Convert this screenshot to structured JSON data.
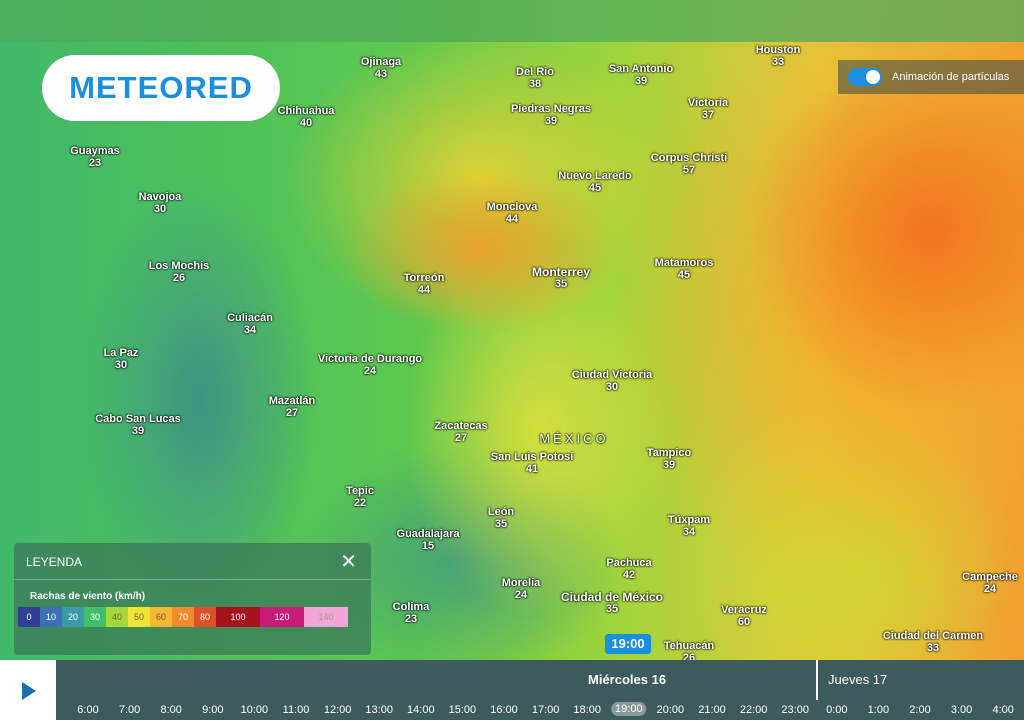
{
  "header": {
    "logo": "METEORED",
    "toggle_label": "Animación de partículas"
  },
  "map": {
    "country": "MÉXICO",
    "cities": [
      {
        "name": "Ojinaga",
        "value": 43
      },
      {
        "name": "Del Rio",
        "value": 38
      },
      {
        "name": "San Antonio",
        "value": 39
      },
      {
        "name": "Houston",
        "value": 33
      },
      {
        "name": "Chihuahua",
        "value": 40
      },
      {
        "name": "Piedras Negras",
        "value": 39
      },
      {
        "name": "Victoria",
        "value": 37
      },
      {
        "name": "Guaymas",
        "value": 23
      },
      {
        "name": "Corpus Christi",
        "value": 57
      },
      {
        "name": "Nuevo Laredo",
        "value": 45
      },
      {
        "name": "Navojoa",
        "value": 30
      },
      {
        "name": "Monclova",
        "value": 44
      },
      {
        "name": "Los Mochis",
        "value": 26
      },
      {
        "name": "Monterrey",
        "value": 35
      },
      {
        "name": "Matamoros",
        "value": 45
      },
      {
        "name": "Torreón",
        "value": 44
      },
      {
        "name": "Culiacán",
        "value": 34
      },
      {
        "name": "La Paz",
        "value": 30
      },
      {
        "name": "Victoria de Durango",
        "value": 24
      },
      {
        "name": "Ciudad Victoria",
        "value": 30
      },
      {
        "name": "Cabo San Lucas",
        "value": 39
      },
      {
        "name": "Mazatlán",
        "value": 27
      },
      {
        "name": "Zacatecas",
        "value": 27
      },
      {
        "name": "Tampico",
        "value": 39
      },
      {
        "name": "San Luis Potosí",
        "value": 41
      },
      {
        "name": "Tepic",
        "value": 22
      },
      {
        "name": "León",
        "value": 35
      },
      {
        "name": "Túxpam",
        "value": 34
      },
      {
        "name": "Guadalajara",
        "value": 15
      },
      {
        "name": "Pachuca",
        "value": 42
      },
      {
        "name": "Campeche",
        "value": 24
      },
      {
        "name": "Morelia",
        "value": 24
      },
      {
        "name": "Ciudad de México",
        "value": 35
      },
      {
        "name": "Colima",
        "value": 23
      },
      {
        "name": "Veracruz",
        "value": 60
      },
      {
        "name": "Ciudad del Carmen",
        "value": 33
      },
      {
        "name": "Tehuacán",
        "value": 26
      }
    ]
  },
  "legend": {
    "title": "LEYENDA",
    "subtitle": "Rachas de viento (km/h)",
    "steps": [
      {
        "value": 0,
        "color": "#2f3f94"
      },
      {
        "value": 10,
        "color": "#3f6fb4"
      },
      {
        "value": 20,
        "color": "#3a9aa6"
      },
      {
        "value": 30,
        "color": "#3fbf6a"
      },
      {
        "value": 40,
        "color": "#a6d83a"
      },
      {
        "value": 50,
        "color": "#f2e234"
      },
      {
        "value": 60,
        "color": "#f6b832"
      },
      {
        "value": 70,
        "color": "#f08a2a"
      },
      {
        "value": 80,
        "color": "#e05028"
      },
      {
        "value": 100,
        "color": "#a8141e"
      },
      {
        "value": 120,
        "color": "#c81c78"
      },
      {
        "value": 140,
        "color": "#f2a6d8"
      }
    ]
  },
  "timeline": {
    "current": "19:00",
    "days": [
      "Miércoles 16",
      "Jueves 17"
    ],
    "hours": [
      "6:00",
      "7:00",
      "8:00",
      "9:00",
      "10:00",
      "11:00",
      "12:00",
      "13:00",
      "14:00",
      "15:00",
      "16:00",
      "17:00",
      "18:00",
      "19:00",
      "20:00",
      "21:00",
      "22:00",
      "23:00",
      "0:00",
      "1:00",
      "2:00",
      "3:00",
      "4:00"
    ]
  }
}
